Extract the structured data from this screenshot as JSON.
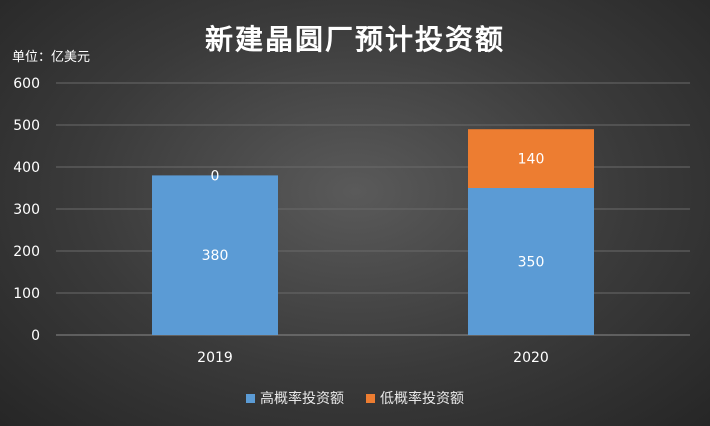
{
  "chart_data": {
    "type": "bar",
    "stacked": true,
    "title": "新建晶圆厂预计投资额",
    "unit_label": "单位：亿美元",
    "categories": [
      "2019",
      "2020"
    ],
    "series": [
      {
        "name": "高概率投资额",
        "values": [
          380,
          350
        ],
        "color": "#5b9bd5"
      },
      {
        "name": "低概率投资额",
        "values": [
          0,
          140
        ],
        "color": "#ed7d31"
      }
    ],
    "ylim": [
      0,
      600
    ],
    "yticks": [
      0,
      100,
      200,
      300,
      400,
      500,
      600
    ],
    "grid": true,
    "legend_position": "bottom"
  }
}
